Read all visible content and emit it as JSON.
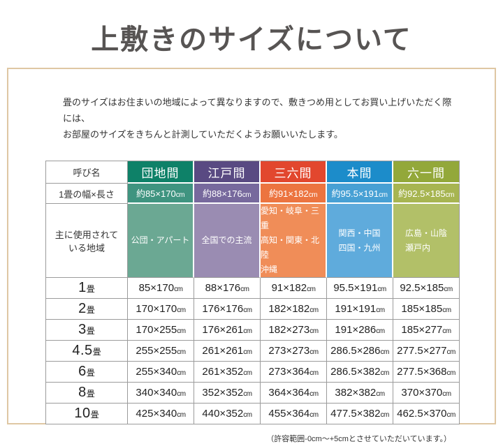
{
  "page": {
    "title": "上敷きのサイズについて"
  },
  "intro": {
    "line1": "畳のサイズはお住まいの地域によって異なりますので、敷きつめ用としてお買い上げいただく際には、",
    "line2": "お部屋のサイズをきちんと計測していただくようお願いいたします。"
  },
  "table": {
    "corner_label": "呼び名",
    "size_row_label": "1畳の幅×長さ",
    "region_row_label_lines": [
      "主に使用されて",
      "いる地域"
    ],
    "columns": [
      {
        "name": "団地間",
        "header_color": "#0e8168",
        "size_color": "#3f9480",
        "region_color": "#6ba893",
        "size": "約85×170cm",
        "regions": [
          "公団・アパート"
        ]
      },
      {
        "name": "江戸間",
        "header_color": "#594a82",
        "size_color": "#77699d",
        "region_color": "#9a8cb2",
        "size": "約88×176cm",
        "regions": [
          "全国での主流"
        ]
      },
      {
        "name": "三六間",
        "header_color": "#e2472e",
        "size_color": "#ec7440",
        "region_color": "#f08d58",
        "size": "約91×182cm",
        "regions": [
          "愛知・岐阜・三重",
          "高知・関東・北陸",
          "沖縄"
        ]
      },
      {
        "name": "本間",
        "header_color": "#1c8cca",
        "size_color": "#47a0d4",
        "region_color": "#5fabdc",
        "size": "約95.5×191cm",
        "regions": [
          "関西・中国",
          "四国・九州"
        ]
      },
      {
        "name": "六一間",
        "header_color": "#93a83a",
        "size_color": "#a7b551",
        "region_color": "#b2c068",
        "size": "約92.5×185cm",
        "regions": [
          "広島・山陰",
          "瀬戸内"
        ]
      }
    ],
    "rows": [
      {
        "label_num": "1",
        "label_unit": "畳",
        "values": [
          "85×170cm",
          "88×176cm",
          "91×182cm",
          "95.5×191cm",
          "92.5×185cm"
        ]
      },
      {
        "label_num": "2",
        "label_unit": "畳",
        "values": [
          "170×170cm",
          "176×176cm",
          "182×182cm",
          "191×191cm",
          "185×185cm"
        ]
      },
      {
        "label_num": "3",
        "label_unit": "畳",
        "values": [
          "170×255cm",
          "176×261cm",
          "182×273cm",
          "191×286cm",
          "185×277cm"
        ]
      },
      {
        "label_num": "4.5",
        "label_unit": "畳",
        "values": [
          "255×255cm",
          "261×261cm",
          "273×273cm",
          "286.5×286cm",
          "277.5×277cm"
        ]
      },
      {
        "label_num": "6",
        "label_unit": "畳",
        "values": [
          "255×340cm",
          "261×352cm",
          "273×364cm",
          "286.5×382cm",
          "277.5×368cm"
        ]
      },
      {
        "label_num": "8",
        "label_unit": "畳",
        "values": [
          "340×340cm",
          "352×352cm",
          "364×364cm",
          "382×382cm",
          "370×370cm"
        ]
      },
      {
        "label_num": "10",
        "label_unit": "畳",
        "values": [
          "425×340cm",
          "440×352cm",
          "455×364cm",
          "477.5×382cm",
          "462.5×370cm"
        ]
      }
    ]
  },
  "footer": {
    "note": "（許容範囲-0cm～+5cmとさせていただいています。）"
  }
}
